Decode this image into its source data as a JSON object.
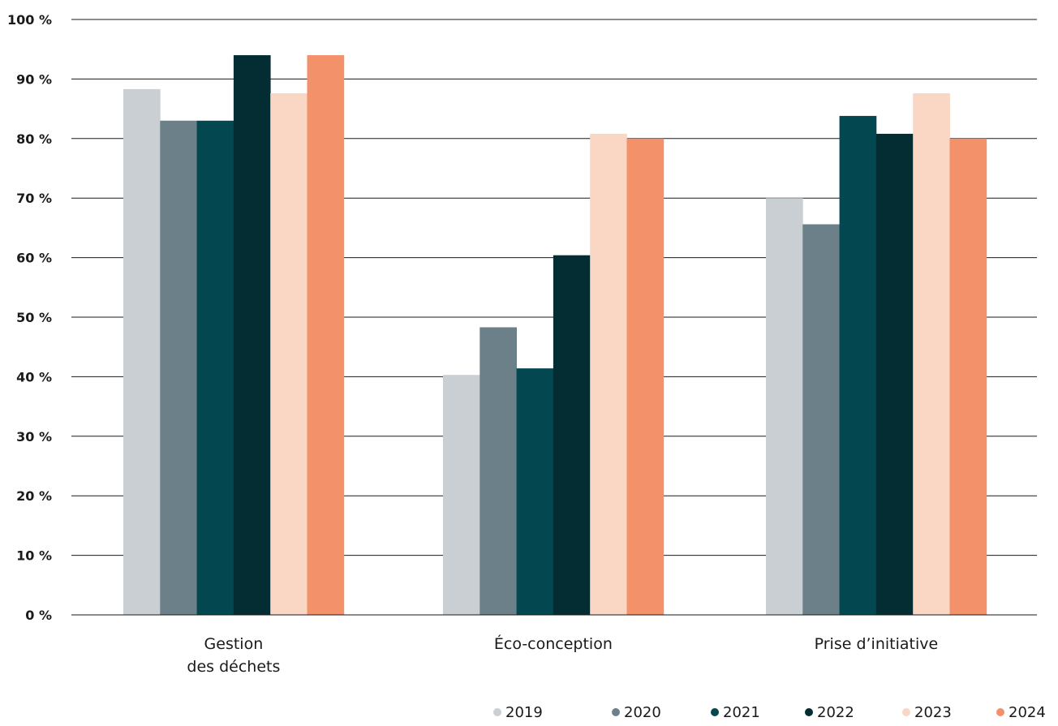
{
  "chart_data": {
    "type": "bar",
    "title": "",
    "xlabel": "",
    "ylabel": "",
    "ylim": [
      0,
      100
    ],
    "y_ticks": [
      0,
      10,
      20,
      30,
      40,
      50,
      60,
      70,
      80,
      90,
      100
    ],
    "y_tick_suffix": " %",
    "grid": true,
    "legend_position": "bottom-right",
    "categories": [
      [
        "Gestion",
        "des déchets"
      ],
      [
        "Éco-conception"
      ],
      [
        "Prise d’initiative"
      ]
    ],
    "series": [
      {
        "name": "2019",
        "color": "#c9cfd3",
        "values": [
          88.3,
          40.3,
          70.0
        ]
      },
      {
        "name": "2020",
        "color": "#6b8088",
        "values": [
          83.0,
          48.3,
          65.6
        ]
      },
      {
        "name": "2021",
        "color": "#034751",
        "values": [
          83.0,
          41.4,
          83.8
        ]
      },
      {
        "name": "2022",
        "color": "#032d33",
        "values": [
          94.0,
          60.4,
          80.8
        ]
      },
      {
        "name": "2023",
        "color": "#fad6c4",
        "values": [
          87.6,
          80.8,
          87.6
        ]
      },
      {
        "name": "2024",
        "color": "#f2916a",
        "values": [
          94.0,
          80.0,
          80.0
        ]
      }
    ]
  }
}
